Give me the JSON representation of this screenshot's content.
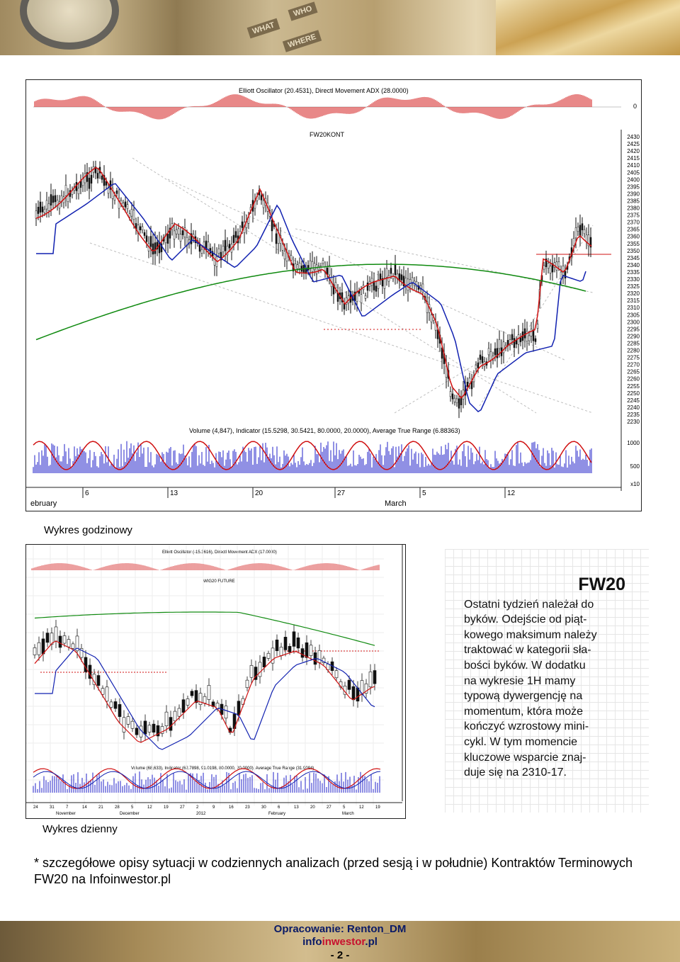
{
  "banner": {
    "sign_words": [
      "WHAT",
      "WHERE",
      "WHO"
    ],
    "icon": "market-banner-icon"
  },
  "hourly_chart": {
    "osc_title": "Elliott Oscillator (20.4531), Directl Movement ADX (28.0000)",
    "osc_zero_label": "0",
    "price_title": "FW20KONT",
    "price_ticks": [
      "2430",
      "2425",
      "2420",
      "2415",
      "2410",
      "2405",
      "2400",
      "2395",
      "2390",
      "2385",
      "2380",
      "2375",
      "2370",
      "2365",
      "2360",
      "2355",
      "2350",
      "2345",
      "2340",
      "2335",
      "2330",
      "2325",
      "2320",
      "2315",
      "2310",
      "2305",
      "2300",
      "2295",
      "2290",
      "2285",
      "2280",
      "2275",
      "2270",
      "2265",
      "2260",
      "2255",
      "2250",
      "2245",
      "2240",
      "2235",
      "2230"
    ],
    "volume_title": "Volume (4,847), Indicator (15.5298, 30.5421, 80.0000, 20.0000), Average True Range (6.88363)",
    "volume_ticks": [
      "1000",
      "500"
    ],
    "volume_unit": "x10",
    "day_ticks": [
      "6",
      "13",
      "20",
      "27",
      "5",
      "12"
    ],
    "month_labels": [
      "ebruary",
      "March"
    ]
  },
  "hourly_caption": "Wykres godzinowy",
  "daily_chart": {
    "osc_title": "Elliott Oscillator (-15.3616), Directl Movement ADX (17.0000)",
    "osc_ticks": [
      "100",
      "0",
      "-100"
    ],
    "price_title": "WIG20 FUTURE",
    "price_ticks": [
      "2550",
      "2600",
      "2650",
      "2400",
      "2350",
      "2300",
      "2250",
      "2200",
      "2150",
      "2100"
    ],
    "volume_title": "Volume (68,633), Indicator (62.7898, 91.0198, 80.0000, 20.0000), Average True Range (31.9094)",
    "volume_ticks": [
      "1000",
      "500"
    ],
    "day_ticks": [
      "24",
      "31",
      "7",
      "14",
      "21",
      "28",
      "5",
      "12",
      "19",
      "27",
      "2",
      "9",
      "16",
      "23",
      "30",
      "6",
      "13",
      "20",
      "27",
      "5",
      "12",
      "19"
    ],
    "month_labels": [
      "November",
      "December",
      "2012",
      "February",
      "March"
    ]
  },
  "daily_caption": "Wykres dzienny",
  "commentary": {
    "title": "FW20",
    "lines": [
      "Ostatni tydzień należał do",
      "byków. Odejście od piąt-",
      "kowego maksimum należy",
      "traktować w kategorii sła-",
      "bości byków. W dodatku",
      "na wykresie 1H mamy",
      "typową dywergencję na",
      "momentum, która może",
      "kończyć wzrostowy mini-",
      "cykl. W tym momencie",
      "kluczowe wsparcie znaj-",
      "duje się na 2310-17."
    ]
  },
  "footnote": "* szczegółowe opisy sytuacji w codziennych analizach (przed sesją i w południe) Kontraktów Terminowych FW20 na Infoinwestor.pl",
  "footer": {
    "author": "Opracowanie: Renton_DM",
    "site_prefix": "info",
    "site_brand": "inwestor",
    "site_suffix": ".pl",
    "page": "- 2 -"
  },
  "colors": {
    "price_red": "#d01010",
    "ma_blue": "#1020b0",
    "ma_green": "#108a10",
    "volume_blue": "#2020c8",
    "footer_text": "#0a1a66"
  }
}
